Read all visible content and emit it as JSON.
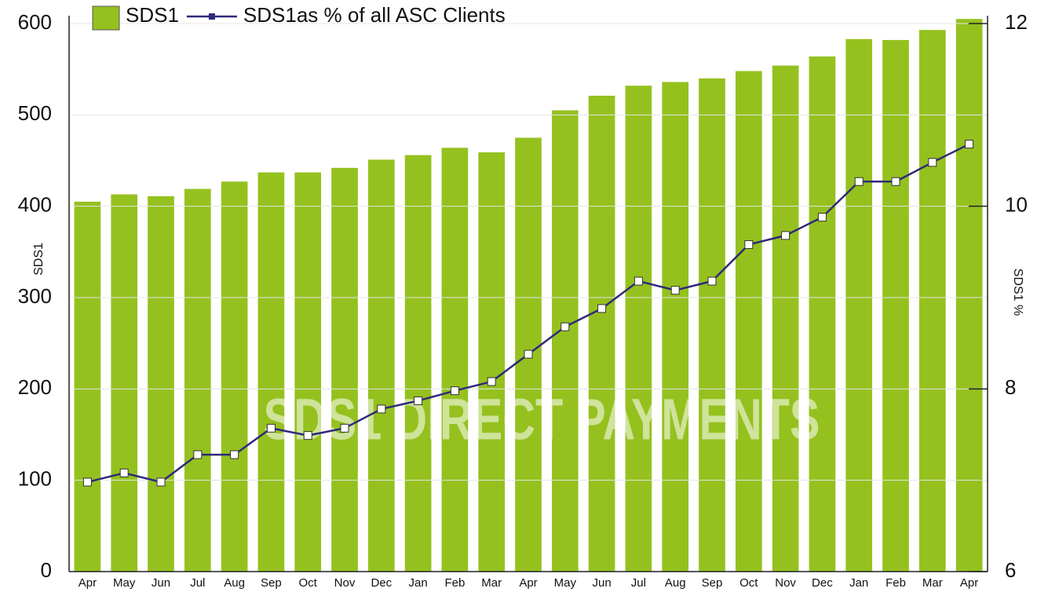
{
  "chart_data": {
    "type": "bar-line",
    "annotation": "SDS1 DIRECT PAYMENTS",
    "y_label": "SDS1",
    "y2_label": "SDS1 %",
    "categories": [
      "Apr",
      "May",
      "Jun",
      "Jul",
      "Aug",
      "Sep",
      "Oct",
      "Nov",
      "Dec",
      "Jan",
      "Feb",
      "Mar",
      "Apr",
      "May",
      "Jun",
      "Jul",
      "Aug",
      "Sep",
      "Oct",
      "Nov",
      "Dec",
      "Jan",
      "Feb",
      "Mar",
      "Apr"
    ],
    "series": [
      {
        "name": "SDS1",
        "type": "bar",
        "color": "#95c11f",
        "values": [
          405,
          413,
          411,
          419,
          427,
          437,
          437,
          442,
          451,
          456,
          464,
          459,
          475,
          505,
          521,
          532,
          536,
          540,
          548,
          554,
          564,
          583,
          582,
          593,
          605
        ]
      },
      {
        "name": "SDS1as % of all ASC Clients",
        "type": "line",
        "axis": "y2",
        "color": "#2e2a7a",
        "values": [
          6.98,
          7.08,
          6.98,
          7.28,
          7.28,
          7.57,
          7.49,
          7.57,
          7.78,
          7.87,
          7.98,
          8.08,
          8.38,
          8.68,
          8.88,
          9.18,
          9.08,
          9.18,
          9.58,
          9.68,
          9.88,
          10.27,
          10.27,
          10.48,
          10.68
        ]
      }
    ],
    "ylim": [
      0,
      600
    ],
    "yticks": [
      0,
      100,
      200,
      300,
      400,
      500,
      600
    ],
    "y2lim": [
      6,
      12
    ],
    "y2ticks": [
      6,
      8,
      10,
      12
    ],
    "grid": true
  }
}
